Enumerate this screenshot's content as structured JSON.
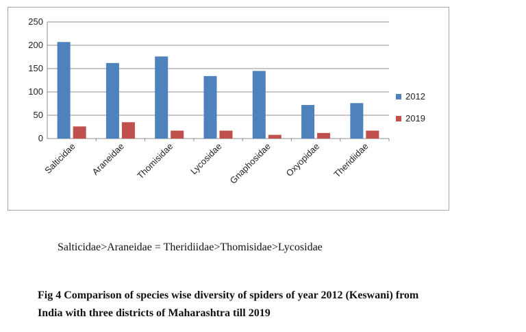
{
  "chart_data": {
    "type": "bar",
    "categories": [
      "Salticidae",
      "Araneidae",
      "Thomisidae",
      "Lycosidae",
      "Gnaphosidae",
      "Oxyopidae",
      "Theridiidae"
    ],
    "series": [
      {
        "name": "2012",
        "values": [
          207,
          162,
          176,
          134,
          145,
          72,
          76
        ],
        "color": "#4f81bd"
      },
      {
        "name": "2019",
        "values": [
          26,
          35,
          17,
          17,
          8,
          12,
          17
        ],
        "color": "#c0504d"
      }
    ],
    "yticks": [
      0,
      50,
      100,
      150,
      200,
      250
    ],
    "ylim": [
      0,
      250
    ],
    "grid": true,
    "legend_position": "right",
    "title": "",
    "xlabel": "",
    "ylabel": ""
  },
  "text": {
    "order_line": "Salticidae>Araneidae = Theridiidae>Thomisidae>Lycosidae",
    "caption_line1": "Fig 4 Comparison of  species wise diversity of spiders of  year 2012 (Keswani) from",
    "caption_line2": "India with   three districts of Maharashtra till  2019"
  }
}
